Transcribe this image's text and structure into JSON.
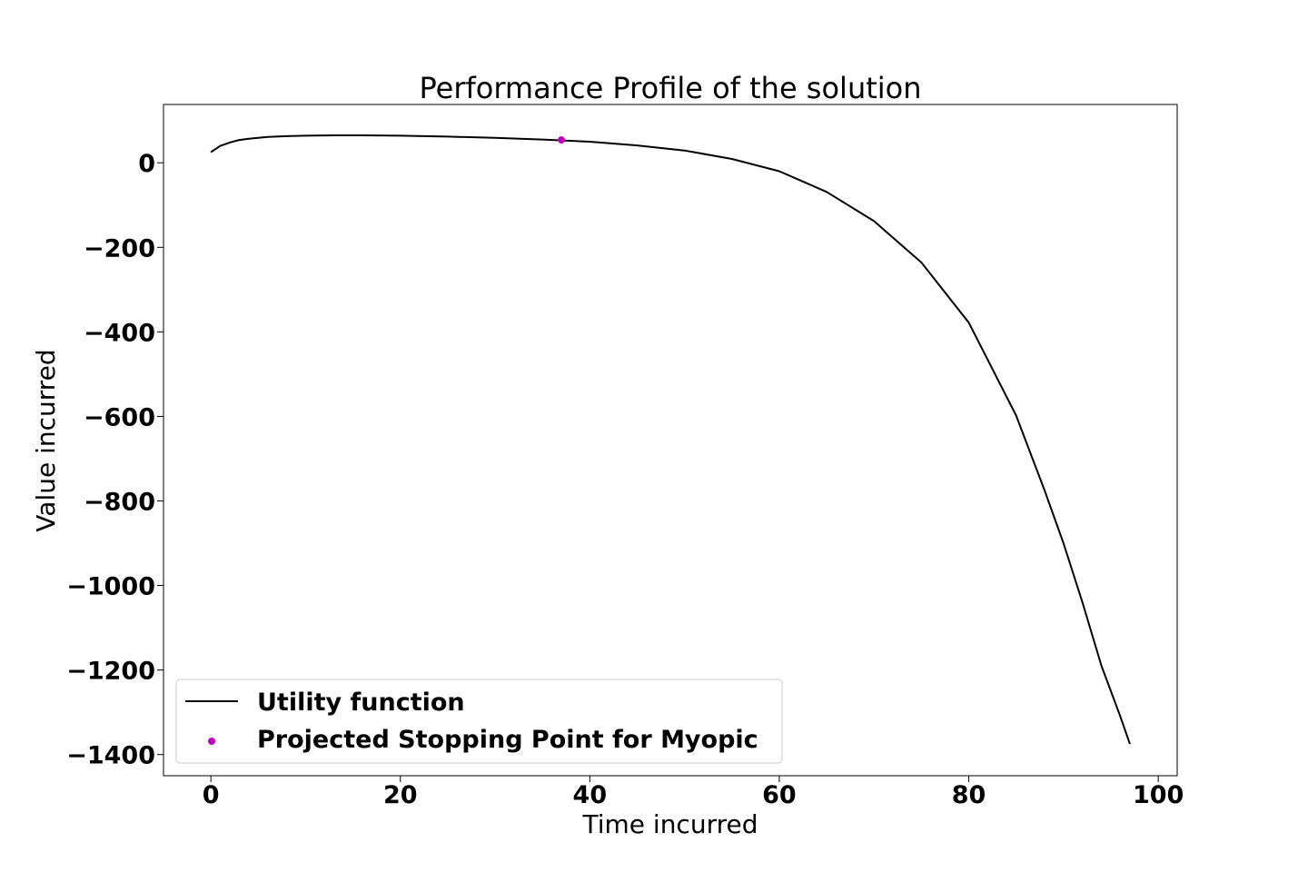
{
  "chart_data": {
    "type": "line",
    "title": "Performance Profile of the solution",
    "xlabel": "Time incurred",
    "ylabel": "Value incurred",
    "xlim": [
      -5,
      102
    ],
    "ylim": [
      -1450,
      138
    ],
    "xticks": [
      0,
      20,
      40,
      60,
      80,
      100
    ],
    "yticks": [
      0,
      -200,
      -400,
      -600,
      -800,
      -1000,
      -1200,
      -1400
    ],
    "grid": false,
    "legend_position": "lower-left",
    "series": [
      {
        "name": "Utility function",
        "kind": "line",
        "color": "#000000",
        "x": [
          0,
          1,
          2,
          3,
          4,
          6,
          8,
          10,
          13,
          16,
          20,
          25,
          30,
          35,
          40,
          45,
          50,
          55,
          60,
          65,
          70,
          75,
          80,
          85,
          88,
          90,
          92,
          94,
          96,
          97
        ],
        "y": [
          25,
          40,
          48,
          54,
          57,
          61,
          63,
          64,
          65,
          65,
          64,
          62,
          59,
          55,
          50,
          41,
          29,
          9,
          -20,
          -69,
          -138,
          -236,
          -378,
          -598,
          -775,
          -900,
          -1040,
          -1190,
          -1310,
          -1375
        ]
      },
      {
        "name": "Projected Stopping Point for Myopic",
        "kind": "scatter",
        "color": "#bf00bf",
        "x": [
          37
        ],
        "y": [
          54
        ]
      }
    ]
  }
}
